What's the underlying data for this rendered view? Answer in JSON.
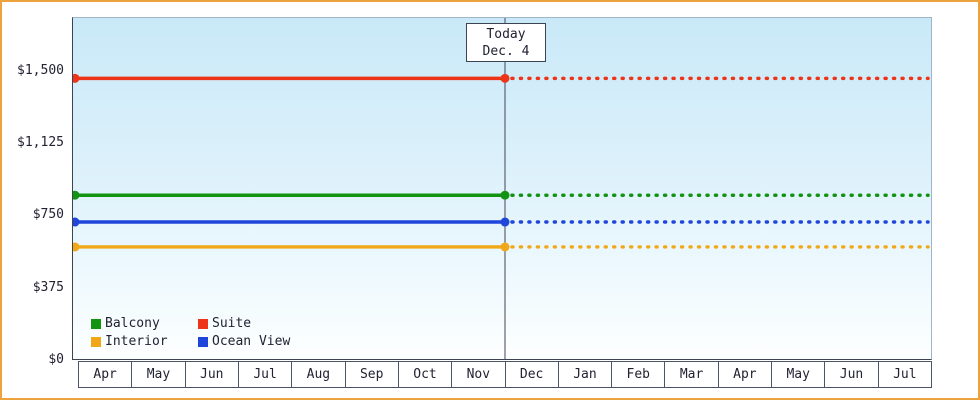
{
  "chart_data": {
    "type": "line",
    "title": "",
    "subtitle": "",
    "x_categories": [
      "Apr",
      "May",
      "Jun",
      "Jul",
      "Aug",
      "Sep",
      "Oct",
      "Nov",
      "Dec",
      "Jan",
      "Feb",
      "Mar",
      "Apr",
      "May",
      "Jun",
      "Jul"
    ],
    "y_tick_values": [
      0,
      375,
      750,
      1125,
      1500
    ],
    "y_tick_labels": [
      "$0",
      "$375",
      "$750",
      "$1,125",
      "$1,500"
    ],
    "ylim": [
      0,
      1780
    ],
    "grid": false,
    "legend_position": "bottom-left",
    "today_marker": {
      "line1": "Today",
      "line2": "Dec. 4",
      "x_index": 8
    },
    "series": [
      {
        "name": "Suite",
        "color": "#ed3419",
        "value": 1465,
        "style": "solid-then-dotted-after-today"
      },
      {
        "name": "Balcony",
        "color": "#129312",
        "value": 855,
        "style": "solid-then-dotted-after-today"
      },
      {
        "name": "Ocean View",
        "color": "#1f45db",
        "value": 715,
        "style": "solid-then-dotted-after-today"
      },
      {
        "name": "Interior",
        "color": "#f0a818",
        "value": 585,
        "style": "solid-then-dotted-after-today"
      }
    ],
    "legend": [
      {
        "name": "Balcony",
        "color": "#129312"
      },
      {
        "name": "Suite",
        "color": "#ed3419"
      },
      {
        "name": "Interior",
        "color": "#f0a818"
      },
      {
        "name": "Ocean View",
        "color": "#1f45db"
      }
    ]
  },
  "colors": {
    "frame_border": "#eda33c",
    "axis": "#3b4450",
    "today_line": "#444455",
    "plot_bg_top": "#c9e9f8",
    "plot_bg_bottom": "#fdffff",
    "text": "#222233"
  }
}
